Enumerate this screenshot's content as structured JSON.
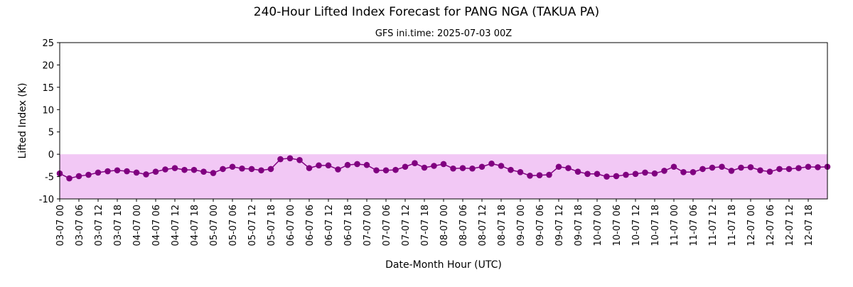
{
  "colors": {
    "line": "#800080",
    "marker": "#800080",
    "fill_below_zero": "#f2c8f5",
    "axes": "#000000",
    "background": "#ffffff"
  },
  "chart_data": {
    "type": "line",
    "title": "240-Hour Lifted Index Forecast for PANG NGA (TAKUA PA)",
    "subtitle": "GFS ini.time: 2025-07-03 00Z",
    "xlabel": "Date-Month Hour (UTC)",
    "ylabel": "Lifted Index (K)",
    "ylim": [
      -10,
      25
    ],
    "yticks": [
      -10,
      -5,
      0,
      5,
      10,
      15,
      20,
      25
    ],
    "x_start": "2025-07-03 00Z",
    "x_end": "2025-07-12 24Z",
    "x_step_hours": 6,
    "xtick_labels": [
      "03-07 00",
      "03-07 06",
      "03-07 12",
      "03-07 18",
      "04-07 00",
      "04-07 06",
      "04-07 12",
      "04-07 18",
      "05-07 00",
      "05-07 06",
      "05-07 12",
      "05-07 18",
      "06-07 00",
      "06-07 06",
      "06-07 12",
      "06-07 18",
      "07-07 00",
      "07-07 06",
      "07-07 12",
      "07-07 18",
      "08-07 00",
      "08-07 06",
      "08-07 12",
      "08-07 18",
      "09-07 00",
      "09-07 06",
      "09-07 12",
      "09-07 18",
      "10-07 00",
      "10-07 06",
      "10-07 12",
      "10-07 18",
      "11-07 00",
      "11-07 06",
      "11-07 12",
      "11-07 18",
      "12-07 00",
      "12-07 06",
      "12-07 12",
      "12-07 18"
    ],
    "grid": false,
    "fill_below_zero": true,
    "series": [
      {
        "name": "",
        "x_hours": [
          0,
          3,
          6,
          9,
          12,
          15,
          18,
          21,
          24,
          27,
          30,
          33,
          36,
          39,
          42,
          45,
          48,
          51,
          54,
          57,
          60,
          63,
          66,
          69,
          72,
          75,
          78,
          81,
          84,
          87,
          90,
          93,
          96,
          99,
          102,
          105,
          108,
          111,
          114,
          117,
          120,
          123,
          126,
          129,
          132,
          135,
          138,
          141,
          144,
          147,
          150,
          153,
          156,
          159,
          162,
          165,
          168,
          171,
          174,
          177,
          180,
          183,
          186,
          189,
          192,
          195,
          198,
          201,
          204,
          207,
          210,
          213,
          216,
          219,
          222,
          225,
          228,
          231,
          234,
          237,
          240
        ],
        "values": [
          -4.3,
          -5.4,
          -4.9,
          -4.6,
          -4.1,
          -3.8,
          -3.6,
          -3.8,
          -4.1,
          -4.5,
          -3.9,
          -3.4,
          -3.1,
          -3.5,
          -3.5,
          -3.9,
          -4.2,
          -3.3,
          -2.8,
          -3.2,
          -3.3,
          -3.6,
          -3.3,
          -1.1,
          -0.9,
          -1.3,
          -3.1,
          -2.5,
          -2.5,
          -3.4,
          -2.4,
          -2.2,
          -2.4,
          -3.6,
          -3.6,
          -3.5,
          -2.8,
          -2.0,
          -3.0,
          -2.6,
          -2.2,
          -3.2,
          -3.1,
          -3.2,
          -2.8,
          -2.1,
          -2.6,
          -3.5,
          -4.0,
          -4.8,
          -4.7,
          -4.6,
          -2.8,
          -3.1,
          -3.9,
          -4.4,
          -4.4,
          -5.0,
          -4.9,
          -4.6,
          -4.4,
          -4.1,
          -4.3,
          -3.7,
          -2.8,
          -4.0,
          -4.0,
          -3.3,
          -3.0,
          -2.8,
          -3.7,
          -3.0,
          -2.9,
          -3.6,
          -3.9,
          -3.3,
          -3.3,
          -3.1,
          -2.8,
          -2.9,
          -2.8
        ]
      }
    ]
  }
}
